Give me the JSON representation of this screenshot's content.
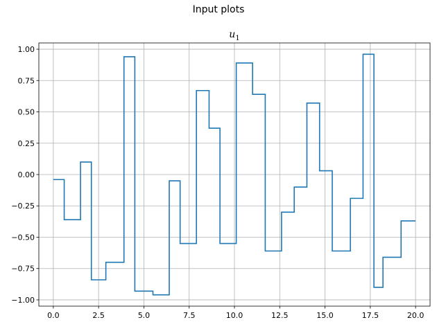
{
  "figure": {
    "suptitle": "Input plots",
    "axes_title_main": "u",
    "axes_title_sub": "1"
  },
  "colors": {
    "line": "#1f77b4",
    "grid": "#b0b0b0",
    "axes": "#000000"
  },
  "chart_data": {
    "type": "line",
    "drawstyle": "steps-post",
    "title": "u_1",
    "xlabel": "",
    "ylabel": "",
    "grid": true,
    "xlim": [
      -0.8,
      20.8
    ],
    "ylim": [
      -1.05,
      1.05
    ],
    "xticks": [
      0.0,
      2.5,
      5.0,
      7.5,
      10.0,
      12.5,
      15.0,
      17.5,
      20.0
    ],
    "xtick_labels": [
      "0.0",
      "2.5",
      "5.0",
      "7.5",
      "10.0",
      "12.5",
      "15.0",
      "17.5",
      "20.0"
    ],
    "yticks": [
      -1.0,
      -0.75,
      -0.5,
      -0.25,
      0.0,
      0.25,
      0.5,
      0.75,
      1.0
    ],
    "ytick_labels": [
      "−1.00",
      "−0.75",
      "−0.50",
      "−0.25",
      "0.00",
      "0.25",
      "0.50",
      "0.75",
      "1.00"
    ],
    "series": [
      {
        "x": [
          0.0,
          0.6,
          1.5,
          2.1,
          2.9,
          3.9,
          4.5,
          5.5,
          6.4,
          7.0,
          7.9,
          8.6,
          9.2,
          10.1,
          11.0,
          11.7,
          12.6,
          13.3,
          14.0,
          14.7,
          15.4,
          16.4,
          17.1,
          17.7,
          18.2,
          19.2,
          20.0
        ],
        "y": [
          -0.04,
          -0.36,
          0.1,
          -0.84,
          -0.7,
          0.94,
          -0.93,
          -0.96,
          -0.05,
          -0.55,
          0.67,
          0.37,
          -0.55,
          0.89,
          0.64,
          -0.61,
          -0.3,
          -0.1,
          0.57,
          0.03,
          -0.61,
          -0.19,
          0.96,
          -0.9,
          -0.66,
          -0.37,
          -0.37
        ]
      }
    ]
  }
}
